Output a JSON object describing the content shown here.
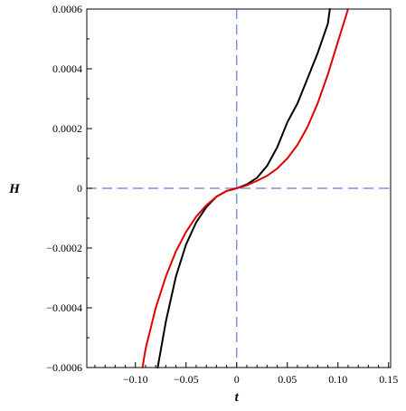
{
  "chart_data": {
    "type": "line",
    "xlabel": "t",
    "ylabel": "H",
    "xlim": [
      -0.148,
      0.152
    ],
    "ylim": [
      -0.0006,
      0.0006
    ],
    "x_ticks": [
      {
        "value": -0.1,
        "label": "−0.10"
      },
      {
        "value": -0.05,
        "label": "−0.05"
      },
      {
        "value": 0,
        "label": "0"
      },
      {
        "value": 0.05,
        "label": "0.05"
      },
      {
        "value": 0.1,
        "label": "0.10"
      },
      {
        "value": 0.15,
        "label": "0.15"
      }
    ],
    "y_ticks": [
      {
        "value": -0.0006,
        "label": "−0.0006"
      },
      {
        "value": -0.0004,
        "label": "−0.0004"
      },
      {
        "value": -0.0002,
        "label": "−0.0002"
      },
      {
        "value": 0,
        "label": "0"
      },
      {
        "value": 0.0002,
        "label": "0.0002"
      },
      {
        "value": 0.0004,
        "label": "0.0004"
      },
      {
        "value": 0.0006,
        "label": "0.0006"
      }
    ],
    "reference_lines": [
      {
        "orientation": "horizontal",
        "value": 0,
        "color": "#5B7FE0",
        "style": "dashed"
      },
      {
        "orientation": "vertical",
        "value": 0,
        "color": "#5B7FE0",
        "style": "dashed"
      }
    ],
    "series": [
      {
        "color": "#000000",
        "x": [
          -0.078,
          -0.07,
          -0.06,
          -0.05,
          -0.04,
          -0.03,
          -0.02,
          -0.01,
          0,
          0.01,
          0.02,
          0.03,
          0.04,
          0.05,
          0.06,
          0.07,
          0.08,
          0.09,
          0.092
        ],
        "y": [
          -0.0006,
          -0.000447,
          -0.000295,
          -0.000188,
          -0.000114,
          -6.3e-05,
          -2.8e-05,
          -9e-06,
          0,
          1.3e-05,
          3.5e-05,
          7.5e-05,
          0.000137,
          0.000221,
          0.000284,
          0.000368,
          0.000453,
          0.000551,
          0.0006
        ]
      },
      {
        "color": "#E00000",
        "x": [
          -0.093,
          -0.09,
          -0.08,
          -0.07,
          -0.06,
          -0.05,
          -0.04,
          -0.03,
          -0.02,
          -0.01,
          0,
          0.01,
          0.02,
          0.03,
          0.04,
          0.05,
          0.06,
          0.07,
          0.08,
          0.09,
          0.1,
          0.11
        ],
        "y": [
          -0.0006,
          -0.000538,
          -0.000401,
          -0.000296,
          -0.000211,
          -0.000146,
          -9.5e-05,
          -5.7e-05,
          -2.8e-05,
          -9e-06,
          0,
          1e-05,
          2.5e-05,
          4.2e-05,
          6.6e-05,
          0.0001,
          0.000145,
          0.000206,
          0.000285,
          0.000381,
          0.000491,
          0.0006
        ]
      }
    ]
  }
}
